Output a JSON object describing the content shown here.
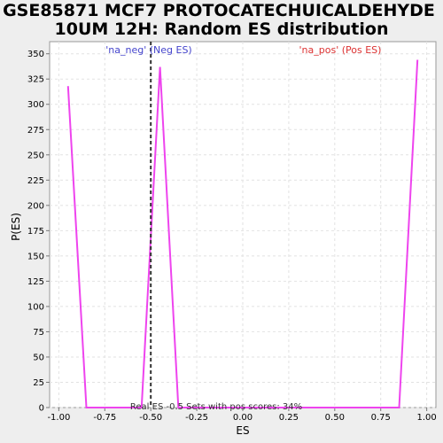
{
  "chart_data": {
    "type": "line",
    "title_line1": "GSE85871 MCF7 PROTOCATECHUICALDEHYDE",
    "title_line2": "10UM 12H: Random ES distribution",
    "xlabel": "ES",
    "ylabel": "P(ES)",
    "xlim": [
      -1.05,
      1.05
    ],
    "ylim": [
      0,
      362
    ],
    "x_ticks": [
      "-1.00",
      "-0.75",
      "-0.50",
      "-0.25",
      "0.00",
      "0.25",
      "0.50",
      "0.75",
      "1.00"
    ],
    "y_ticks": [
      "0",
      "25",
      "50",
      "75",
      "100",
      "125",
      "150",
      "175",
      "200",
      "225",
      "250",
      "275",
      "300",
      "325",
      "350"
    ],
    "grid": true,
    "series": [
      {
        "x": [
          -0.95,
          -0.85,
          -0.55,
          -0.45,
          -0.35,
          0.85,
          0.95
        ],
        "y": [
          318,
          0,
          0,
          337,
          0,
          0,
          344
        ],
        "color": "#ee44ee"
      }
    ],
    "real_es": -0.5,
    "real_es_line_color": "#333333",
    "legend_neg": {
      "label": "'na_neg' (Neg ES)",
      "color": "#4444cc"
    },
    "legend_pos": {
      "label": "'na_pos' (Pos ES)",
      "color": "#dd3333"
    },
    "footnote": "Real ES -0.5 Sets with pos scores: 34%"
  }
}
